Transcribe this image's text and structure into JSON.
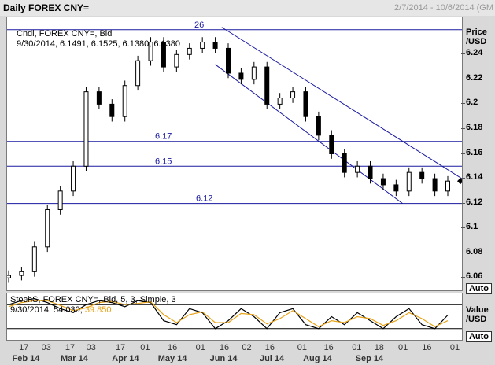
{
  "header": {
    "title": "Daily FOREX CNY=",
    "date_range": "2/7/2014 - 10/6/2014 (GM"
  },
  "price_panel": {
    "info_line1": "Cndl, FOREX CNY=, Bid",
    "info_line2": "9/30/2014, 6.1491, 6.1525, 6.1380, 6.1380",
    "axis_title_1": "Price",
    "axis_title_2": "/USD",
    "auto_label": "Auto",
    "hline_labels": [
      "6.17",
      "6.15",
      "6.12",
      "26"
    ]
  },
  "stoch_panel": {
    "info_line1": "StochS, FOREX CNY=, Bid,  5, 3, Simple, 3",
    "info_value_prefix": "9/30/2014, 54.030, ",
    "info_value_k": "39.850",
    "axis_title_1": "Value",
    "axis_title_2": "/USD",
    "auto_label": "Auto",
    "k_color": "#000000",
    "d_color": "#e8a317"
  },
  "x_axis": {
    "day_labels": [
      "17",
      "03",
      "17",
      "03",
      "17",
      "01",
      "16",
      "01",
      "16",
      "02",
      "16",
      "01",
      "16",
      "01",
      "18",
      "01",
      "16",
      "01"
    ],
    "month_labels": [
      "Feb 14",
      "Mar 14",
      "Apr 14",
      "May 14",
      "Jun 14",
      "Jul 14",
      "Aug 14",
      "Sep 14"
    ]
  },
  "chart_data": {
    "type": "candlestick",
    "instrument": "FOREX CNY=",
    "ylim": [
      6.05,
      6.27
    ],
    "ytick_labels": [
      "6.24",
      "6.22",
      "6.2",
      "6.18",
      "6.16",
      "6.14",
      "6.12",
      "6.1",
      "6.08",
      "6.06"
    ],
    "horizontal_lines": [
      6.26,
      6.17,
      6.15,
      6.12
    ],
    "last_close": 6.138,
    "series": [
      {
        "name": "CNY= Bid",
        "dates": [
          "2014-02-07",
          "2014-02-14",
          "2014-02-21",
          "2014-02-28",
          "2014-03-07",
          "2014-03-14",
          "2014-03-21",
          "2014-03-28",
          "2014-04-04",
          "2014-04-11",
          "2014-04-18",
          "2014-04-25",
          "2014-05-02",
          "2014-05-09",
          "2014-05-16",
          "2014-05-23",
          "2014-05-30",
          "2014-06-06",
          "2014-06-13",
          "2014-06-20",
          "2014-06-27",
          "2014-07-04",
          "2014-07-11",
          "2014-07-18",
          "2014-07-25",
          "2014-08-01",
          "2014-08-08",
          "2014-08-15",
          "2014-08-22",
          "2014-08-29",
          "2014-09-05",
          "2014-09-12",
          "2014-09-19",
          "2014-09-26",
          "2014-09-30"
        ],
        "close": [
          6.062,
          6.065,
          6.085,
          6.115,
          6.13,
          6.15,
          6.21,
          6.2,
          6.19,
          6.215,
          6.235,
          6.25,
          6.23,
          6.24,
          6.245,
          6.25,
          6.245,
          6.225,
          6.22,
          6.23,
          6.2,
          6.205,
          6.21,
          6.19,
          6.175,
          6.16,
          6.145,
          6.15,
          6.14,
          6.135,
          6.13,
          6.145,
          6.14,
          6.13,
          6.138
        ]
      }
    ]
  },
  "stoch_data": {
    "type": "line",
    "ylim": [
      0,
      100
    ],
    "series": [
      {
        "name": "%K",
        "values": [
          80,
          90,
          95,
          85,
          70,
          60,
          80,
          90,
          85,
          75,
          90,
          85,
          40,
          30,
          70,
          60,
          20,
          40,
          70,
          50,
          20,
          60,
          70,
          30,
          20,
          50,
          30,
          60,
          40,
          20,
          50,
          70,
          30,
          20,
          54
        ]
      },
      {
        "name": "%D",
        "values": [
          75,
          85,
          90,
          90,
          78,
          65,
          72,
          85,
          88,
          80,
          83,
          87,
          55,
          35,
          55,
          62,
          35,
          35,
          58,
          55,
          32,
          45,
          65,
          45,
          25,
          40,
          35,
          50,
          45,
          28,
          40,
          60,
          45,
          25,
          40
        ]
      }
    ]
  }
}
